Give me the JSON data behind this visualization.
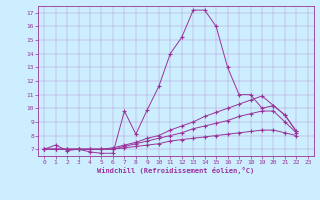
{
  "xlabel": "Windchill (Refroidissement éolien,°C)",
  "bg_color": "#cceeff",
  "line_color": "#993399",
  "xlim": [
    -0.5,
    23.5
  ],
  "ylim": [
    6.5,
    17.5
  ],
  "xticks": [
    0,
    1,
    2,
    3,
    4,
    5,
    6,
    7,
    8,
    9,
    10,
    11,
    12,
    13,
    14,
    15,
    16,
    17,
    18,
    19,
    20,
    21,
    22,
    23
  ],
  "yticks": [
    7,
    8,
    9,
    10,
    11,
    12,
    13,
    14,
    15,
    16,
    17
  ],
  "series": [
    [
      7.0,
      7.3,
      6.9,
      7.0,
      6.8,
      6.7,
      6.7,
      9.8,
      8.1,
      9.9,
      11.6,
      14.0,
      15.2,
      17.2,
      17.2,
      16.0,
      13.0,
      11.0,
      11.0,
      10.0,
      10.2,
      9.5,
      8.3
    ],
    [
      7.0,
      7.0,
      7.0,
      7.0,
      7.0,
      7.0,
      7.1,
      7.3,
      7.5,
      7.8,
      8.0,
      8.4,
      8.7,
      9.0,
      9.4,
      9.7,
      10.0,
      10.3,
      10.6,
      10.9,
      10.2,
      9.5,
      8.3
    ],
    [
      7.0,
      7.0,
      7.0,
      7.0,
      7.0,
      7.0,
      7.0,
      7.2,
      7.4,
      7.6,
      7.8,
      8.0,
      8.2,
      8.5,
      8.7,
      8.9,
      9.1,
      9.4,
      9.6,
      9.8,
      9.8,
      9.0,
      8.2
    ],
    [
      7.0,
      7.0,
      7.0,
      7.0,
      7.0,
      7.0,
      7.0,
      7.1,
      7.2,
      7.3,
      7.4,
      7.6,
      7.7,
      7.8,
      7.9,
      8.0,
      8.1,
      8.2,
      8.3,
      8.4,
      8.4,
      8.2,
      8.0
    ]
  ],
  "series_x": [
    [
      0,
      1,
      2,
      3,
      4,
      5,
      6,
      7,
      8,
      9,
      10,
      11,
      12,
      13,
      14,
      15,
      16,
      17,
      18,
      19,
      20,
      21,
      22
    ],
    [
      0,
      1,
      2,
      3,
      4,
      5,
      6,
      7,
      8,
      9,
      10,
      11,
      12,
      13,
      14,
      15,
      16,
      17,
      18,
      19,
      20,
      21,
      22
    ],
    [
      0,
      1,
      2,
      3,
      4,
      5,
      6,
      7,
      8,
      9,
      10,
      11,
      12,
      13,
      14,
      15,
      16,
      17,
      18,
      19,
      20,
      21,
      22
    ],
    [
      0,
      1,
      2,
      3,
      4,
      5,
      6,
      7,
      8,
      9,
      10,
      11,
      12,
      13,
      14,
      15,
      16,
      17,
      18,
      19,
      20,
      21,
      22
    ]
  ]
}
